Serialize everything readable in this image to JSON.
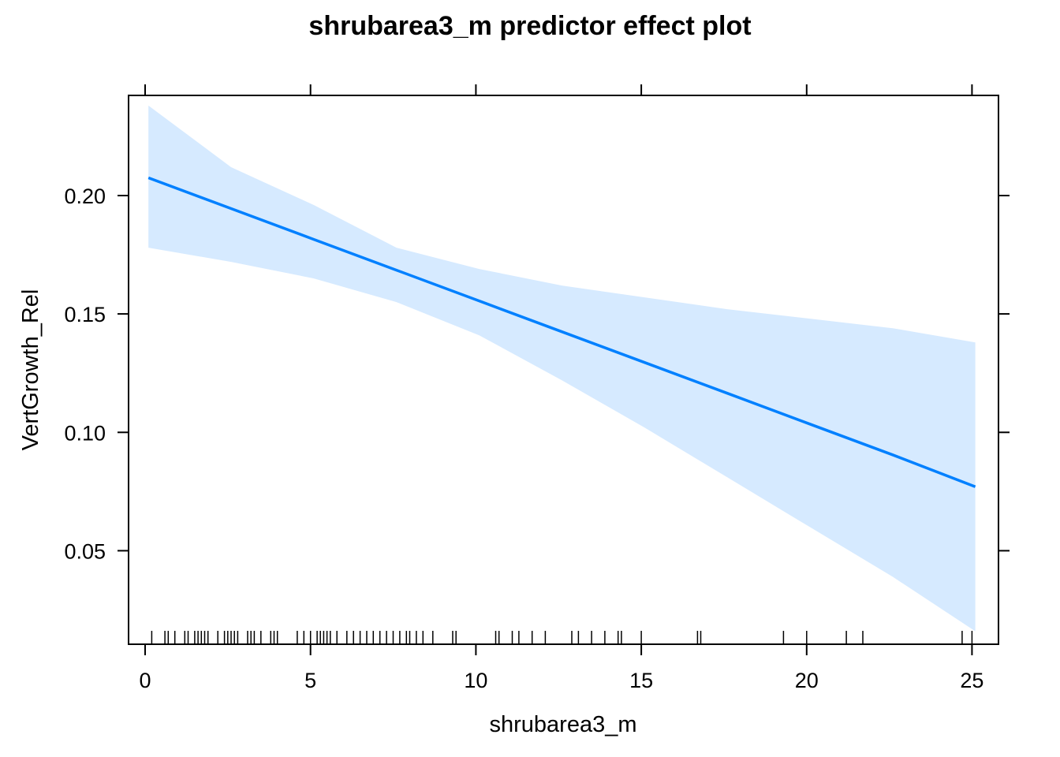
{
  "chart_data": {
    "type": "line",
    "title": "shrubarea3_m predictor effect plot",
    "xlabel": "shrubarea3_m",
    "ylabel": "VertGrowth_Rel",
    "xlim": [
      -0.5,
      25.8
    ],
    "ylim": [
      0.0105,
      0.2423
    ],
    "x_ticks": [
      0,
      5,
      10,
      15,
      20,
      25
    ],
    "y_ticks": [
      0.05,
      0.1,
      0.15,
      0.2
    ],
    "x_tick_labels": [
      "0",
      "5",
      "10",
      "15",
      "20",
      "25"
    ],
    "y_tick_labels": [
      "0.05",
      "0.10",
      "0.15",
      "0.20"
    ],
    "grid": false,
    "series": [
      {
        "x": [
          0.1,
          2.6,
          5.1,
          7.6,
          10.1,
          12.6,
          15.1,
          17.6,
          20.1,
          22.6,
          25.1
        ],
        "fit": [
          0.2075,
          0.1945,
          0.1815,
          0.1685,
          0.1555,
          0.1425,
          0.1295,
          0.1165,
          0.1035,
          0.0905,
          0.077
        ],
        "lower": [
          0.178,
          0.172,
          0.165,
          0.155,
          0.141,
          0.122,
          0.102,
          0.081,
          0.06,
          0.039,
          0.016
        ],
        "upper": [
          0.238,
          0.212,
          0.196,
          0.178,
          0.169,
          0.162,
          0.157,
          0.152,
          0.148,
          0.144,
          0.138
        ],
        "line_color": "#0080ff",
        "band_color": "#d6eaff"
      }
    ],
    "rug": [
      0.2,
      0.6,
      0.7,
      0.9,
      1.2,
      1.3,
      1.5,
      1.6,
      1.7,
      1.8,
      1.9,
      2.2,
      2.4,
      2.5,
      2.6,
      2.7,
      2.8,
      3.1,
      3.2,
      3.3,
      3.5,
      3.8,
      3.9,
      4.0,
      4.6,
      4.8,
      5.0,
      5.2,
      5.3,
      5.4,
      5.5,
      5.6,
      5.8,
      6.1,
      6.3,
      6.5,
      6.7,
      6.9,
      7.1,
      7.3,
      7.5,
      7.7,
      7.9,
      8.0,
      8.2,
      8.4,
      8.7,
      9.3,
      9.4,
      10.6,
      10.7,
      11.1,
      11.3,
      11.7,
      12.1,
      12.9,
      13.1,
      13.5,
      13.9,
      14.3,
      14.4,
      15.0,
      16.7,
      16.8,
      19.3,
      20.0,
      21.2,
      21.7,
      24.7,
      25.0
    ]
  }
}
